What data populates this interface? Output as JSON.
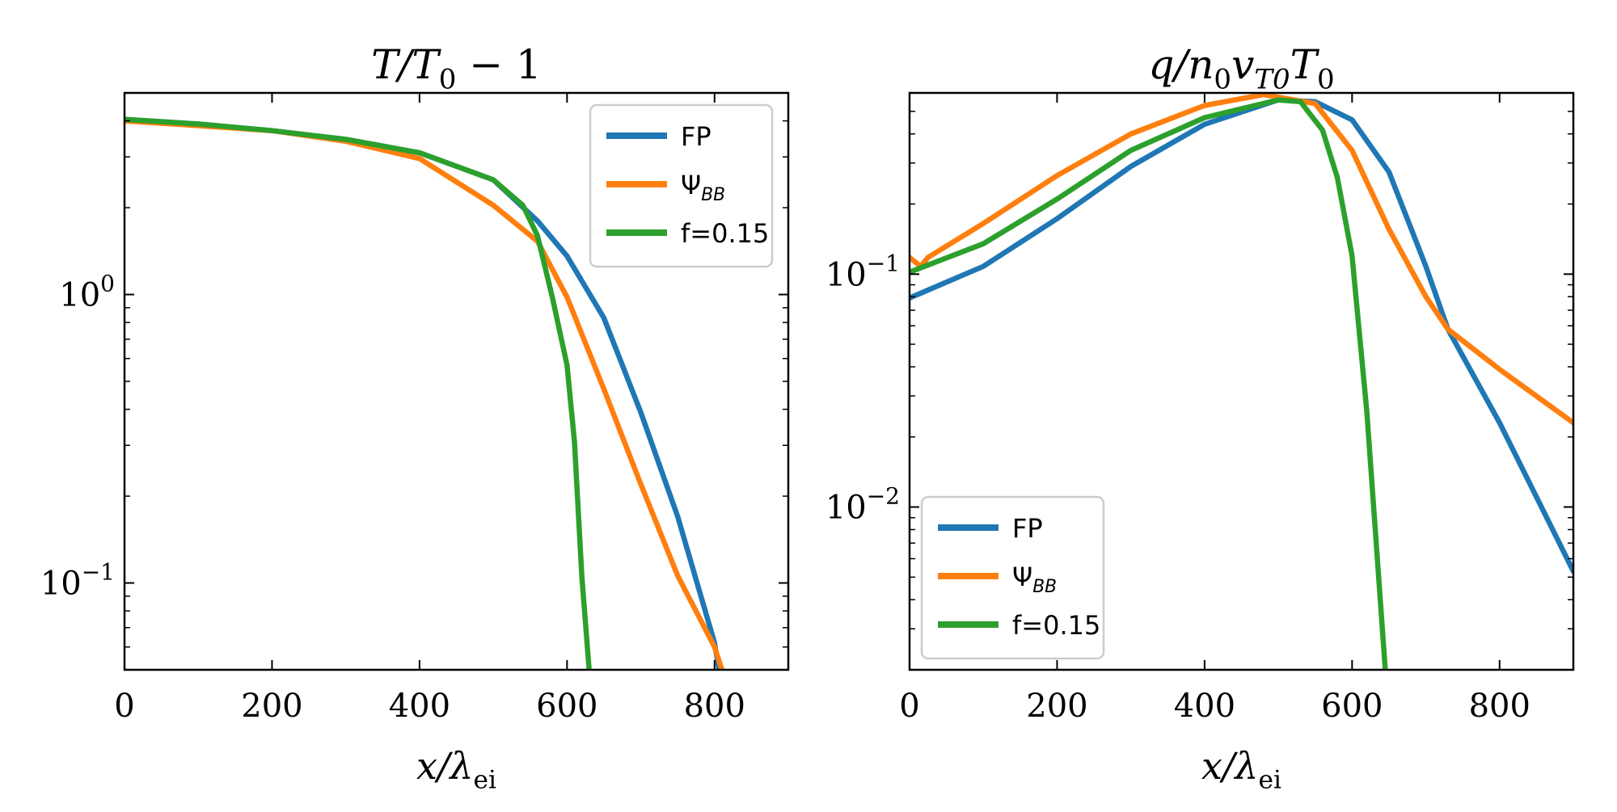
{
  "chart_data": [
    {
      "type": "line",
      "title": [
        {
          "t": "T/T",
          "i": true
        },
        {
          "sub": "0"
        },
        {
          "t": " − 1"
        }
      ],
      "xlabel": [
        {
          "t": "x/λ",
          "i": true
        },
        {
          "sub": "ei"
        }
      ],
      "ylabel": "",
      "xlim": [
        0,
        900
      ],
      "ylim": [
        0.05,
        5
      ],
      "yscale": "log",
      "xticks": [
        0,
        200,
        400,
        600,
        800
      ],
      "xtick_labels": [
        "0",
        "200",
        "400",
        "600",
        "800"
      ],
      "yticks": [
        1,
        0.1
      ],
      "ytick_labels": [
        {
          "base": "10",
          "exp": "0"
        },
        {
          "base": "10",
          "exp": "−1"
        }
      ],
      "grid": false,
      "legend_placement": "top-right",
      "series": [
        {
          "name": "FP",
          "label": [
            {
              "t": "FP"
            }
          ],
          "color": "#1f77b4",
          "x": [
            0,
            100,
            200,
            300,
            400,
            500,
            560,
            600,
            650,
            700,
            750,
            800,
            806
          ],
          "y": [
            4.05,
            3.9,
            3.7,
            3.45,
            3.1,
            2.5,
            1.8,
            1.36,
            0.83,
            0.39,
            0.17,
            0.062,
            0.05
          ]
        },
        {
          "name": "Ψ_BB",
          "label": [
            {
              "t": "Ψ"
            },
            {
              "sub": "BB",
              "i": true
            }
          ],
          "color": "#ff7f0e",
          "x": [
            0,
            100,
            200,
            300,
            400,
            500,
            560,
            600,
            650,
            700,
            750,
            800,
            810
          ],
          "y": [
            4.0,
            3.85,
            3.7,
            3.4,
            2.96,
            2.04,
            1.53,
            0.98,
            0.47,
            0.22,
            0.106,
            0.06,
            0.05
          ]
        },
        {
          "name": "f=0.15",
          "label": [
            {
              "t": "f=0.15"
            }
          ],
          "color": "#2ca02c",
          "x": [
            0,
            100,
            200,
            300,
            400,
            500,
            540,
            560,
            580,
            600,
            610,
            620,
            630
          ],
          "y": [
            4.05,
            3.9,
            3.7,
            3.45,
            3.1,
            2.5,
            2.04,
            1.6,
            0.98,
            0.57,
            0.31,
            0.106,
            0.05
          ]
        }
      ]
    },
    {
      "type": "line",
      "title": [
        {
          "t": "q/n",
          "i": true
        },
        {
          "sub": "0"
        },
        {
          "t": "v",
          "i": true
        },
        {
          "sub": "T0",
          "i": true
        },
        {
          "t": "T",
          "i": true
        },
        {
          "sub": "0"
        }
      ],
      "xlabel": [
        {
          "t": "x/λ",
          "i": true
        },
        {
          "sub": "ei"
        }
      ],
      "ylabel": "",
      "xlim": [
        0,
        900
      ],
      "ylim": [
        0.002,
        0.6
      ],
      "yscale": "log",
      "xticks": [
        0,
        200,
        400,
        600,
        800
      ],
      "xtick_labels": [
        "0",
        "200",
        "400",
        "600",
        "800"
      ],
      "yticks": [
        0.1,
        0.01
      ],
      "ytick_labels": [
        {
          "base": "10",
          "exp": "−1"
        },
        {
          "base": "10",
          "exp": "−2"
        }
      ],
      "grid": false,
      "legend_placement": "lower-left",
      "series": [
        {
          "name": "FP",
          "label": [
            {
              "t": "FP"
            }
          ],
          "color": "#1f77b4",
          "x": [
            0,
            100,
            200,
            300,
            400,
            500,
            550,
            600,
            650,
            700,
            730,
            800,
            900
          ],
          "y": [
            0.079,
            0.108,
            0.173,
            0.29,
            0.44,
            0.56,
            0.55,
            0.46,
            0.275,
            0.108,
            0.058,
            0.023,
            0.0053
          ]
        },
        {
          "name": "Ψ_BB",
          "label": [
            {
              "t": "Ψ"
            },
            {
              "sub": "BB",
              "i": true
            }
          ],
          "color": "#ff7f0e",
          "x": [
            0,
            15,
            25,
            100,
            200,
            300,
            400,
            480,
            550,
            600,
            650,
            700,
            730,
            800,
            900
          ],
          "y": [
            0.118,
            0.108,
            0.118,
            0.165,
            0.265,
            0.4,
            0.53,
            0.59,
            0.54,
            0.34,
            0.156,
            0.08,
            0.058,
            0.039,
            0.023
          ]
        },
        {
          "name": "f=0.15",
          "label": [
            {
              "t": "f=0.15"
            }
          ],
          "color": "#2ca02c",
          "x": [
            0,
            100,
            200,
            300,
            400,
            500,
            530,
            560,
            580,
            600,
            620,
            645
          ],
          "y": [
            0.102,
            0.135,
            0.21,
            0.34,
            0.47,
            0.56,
            0.55,
            0.415,
            0.26,
            0.12,
            0.0256,
            0.002
          ]
        }
      ]
    }
  ]
}
